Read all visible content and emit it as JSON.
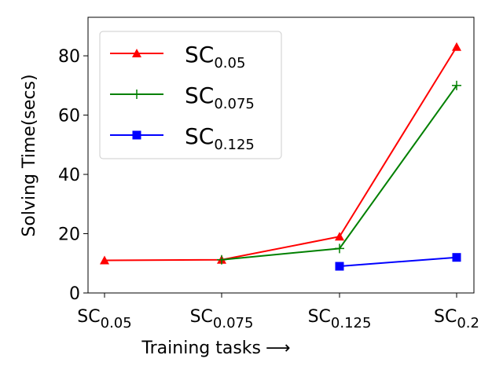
{
  "chart_data": {
    "type": "line",
    "xlabel": "Training tasks",
    "xlabel_arrow": "⟶",
    "ylabel": "Solving Time(secs)",
    "ylim": [
      0,
      93
    ],
    "yticks": [
      "0",
      "20",
      "40",
      "60",
      "80"
    ],
    "categories": [
      {
        "base": "SC",
        "sub": "0.05"
      },
      {
        "base": "SC",
        "sub": "0.075"
      },
      {
        "base": "SC",
        "sub": "0.125"
      },
      {
        "base": "SC",
        "sub": "0.2"
      }
    ],
    "series": [
      {
        "name": {
          "base": "SC",
          "sub": "0.05"
        },
        "color": "#ff0000",
        "marker": "triangle",
        "values": [
          11,
          11.2,
          19,
          83
        ]
      },
      {
        "name": {
          "base": "SC",
          "sub": "0.075"
        },
        "color": "#008000",
        "marker": "plus",
        "values": [
          null,
          11.2,
          15,
          70
        ]
      },
      {
        "name": {
          "base": "SC",
          "sub": "0.125"
        },
        "color": "#0000ff",
        "marker": "square",
        "values": [
          null,
          null,
          9,
          12
        ]
      }
    ],
    "grid": false,
    "legend_position": "top-left"
  }
}
